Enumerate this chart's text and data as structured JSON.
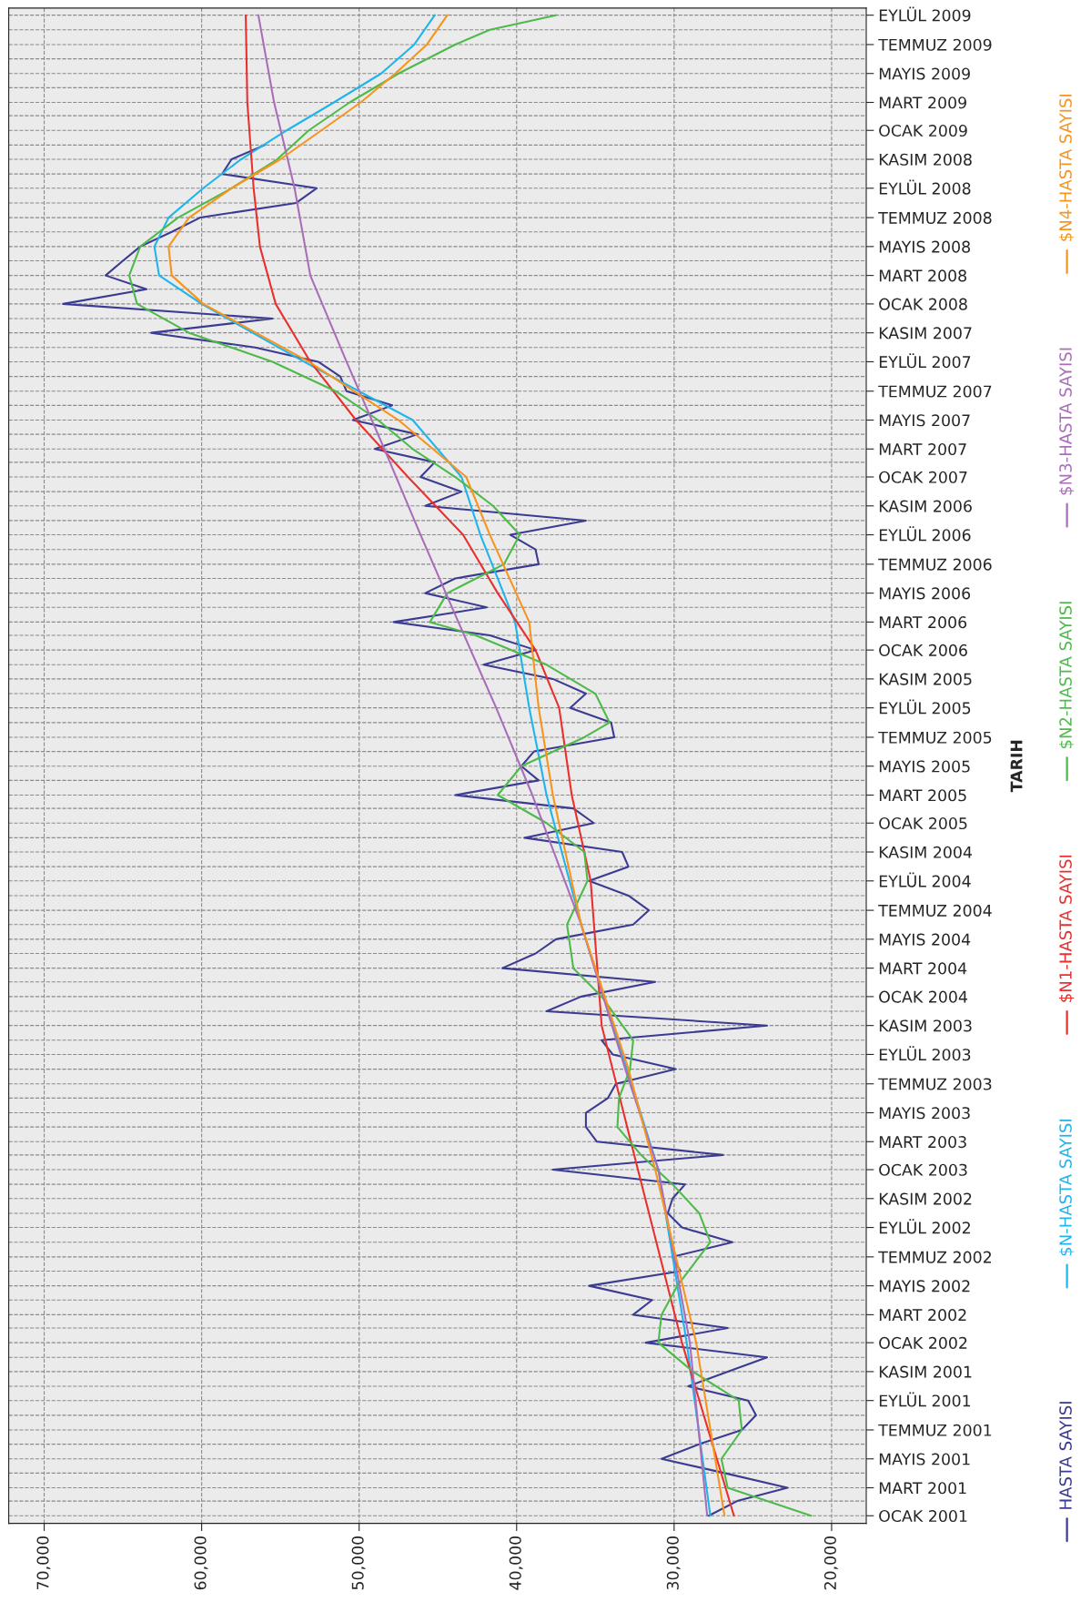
{
  "chart_data": {
    "type": "line",
    "orientation": "horizontal",
    "ylabel": "TARIH",
    "xlim": [
      72250,
      17800
    ],
    "xticks": [
      {
        "value": 70000,
        "label": "70,000"
      },
      {
        "value": 60000,
        "label": "60,000"
      },
      {
        "value": 50000,
        "label": "50,000"
      },
      {
        "value": 40000,
        "label": "40,000"
      },
      {
        "value": 30000,
        "label": "30,000"
      },
      {
        "value": 20000,
        "label": "20,000"
      }
    ],
    "ylim": [
      "2000-12-16",
      "2009-09-16"
    ],
    "yticks": [
      {
        "value": "2001-01",
        "label": "OCAK 2001"
      },
      {
        "value": "2001-02",
        "label": null
      },
      {
        "value": "2001-03",
        "label": "MART 2001"
      },
      {
        "value": "2001-04",
        "label": null
      },
      {
        "value": "2001-05",
        "label": "MAYIS 2001"
      },
      {
        "value": "2001-06",
        "label": null
      },
      {
        "value": "2001-07",
        "label": "TEMMUZ 2001"
      },
      {
        "value": "2001-08",
        "label": null
      },
      {
        "value": "2001-09",
        "label": "EYLÜL 2001"
      },
      {
        "value": "2001-10",
        "label": null
      },
      {
        "value": "2001-11",
        "label": "KASIM 2001"
      },
      {
        "value": "2001-12",
        "label": null
      },
      {
        "value": "2002-01",
        "label": "OCAK 2002"
      },
      {
        "value": "2002-02",
        "label": null
      },
      {
        "value": "2002-03",
        "label": "MART 2002"
      },
      {
        "value": "2002-04",
        "label": null
      },
      {
        "value": "2002-05",
        "label": "MAYIS 2002"
      },
      {
        "value": "2002-06",
        "label": null
      },
      {
        "value": "2002-07",
        "label": "TEMMUZ 2002"
      },
      {
        "value": "2002-08",
        "label": null
      },
      {
        "value": "2002-09",
        "label": "EYLÜL 2002"
      },
      {
        "value": "2002-10",
        "label": null
      },
      {
        "value": "2002-11",
        "label": "KASIM 2002"
      },
      {
        "value": "2002-12",
        "label": null
      },
      {
        "value": "2003-01",
        "label": "OCAK 2003"
      },
      {
        "value": "2003-02",
        "label": null
      },
      {
        "value": "2003-03",
        "label": "MART 2003"
      },
      {
        "value": "2003-04",
        "label": null
      },
      {
        "value": "2003-05",
        "label": "MAYIS 2003"
      },
      {
        "value": "2003-06",
        "label": null
      },
      {
        "value": "2003-07",
        "label": "TEMMUZ 2003"
      },
      {
        "value": "2003-08",
        "label": null
      },
      {
        "value": "2003-09",
        "label": "EYLÜL 2003"
      },
      {
        "value": "2003-10",
        "label": null
      },
      {
        "value": "2003-11",
        "label": "KASIM 2003"
      },
      {
        "value": "2003-12",
        "label": null
      },
      {
        "value": "2004-01",
        "label": "OCAK 2004"
      },
      {
        "value": "2004-02",
        "label": null
      },
      {
        "value": "2004-03",
        "label": "MART 2004"
      },
      {
        "value": "2004-04",
        "label": null
      },
      {
        "value": "2004-05",
        "label": "MAYIS 2004"
      },
      {
        "value": "2004-06",
        "label": null
      },
      {
        "value": "2004-07",
        "label": "TEMMUZ 2004"
      },
      {
        "value": "2004-08",
        "label": null
      },
      {
        "value": "2004-09",
        "label": "EYLÜL 2004"
      },
      {
        "value": "2004-10",
        "label": null
      },
      {
        "value": "2004-11",
        "label": "KASIM 2004"
      },
      {
        "value": "2004-12",
        "label": null
      },
      {
        "value": "2005-01",
        "label": "OCAK 2005"
      },
      {
        "value": "2005-02",
        "label": null
      },
      {
        "value": "2005-03",
        "label": "MART 2005"
      },
      {
        "value": "2005-04",
        "label": null
      },
      {
        "value": "2005-05",
        "label": "MAYIS 2005"
      },
      {
        "value": "2005-06",
        "label": null
      },
      {
        "value": "2005-07",
        "label": "TEMMUZ 2005"
      },
      {
        "value": "2005-08",
        "label": null
      },
      {
        "value": "2005-09",
        "label": "EYLÜL 2005"
      },
      {
        "value": "2005-10",
        "label": null
      },
      {
        "value": "2005-11",
        "label": "KASIM 2005"
      },
      {
        "value": "2005-12",
        "label": null
      },
      {
        "value": "2006-01",
        "label": "OCAK 2006"
      },
      {
        "value": "2006-02",
        "label": null
      },
      {
        "value": "2006-03",
        "label": "MART 2006"
      },
      {
        "value": "2006-04",
        "label": null
      },
      {
        "value": "2006-05",
        "label": "MAYIS 2006"
      },
      {
        "value": "2006-06",
        "label": null
      },
      {
        "value": "2006-07",
        "label": "TEMMUZ 2006"
      },
      {
        "value": "2006-08",
        "label": null
      },
      {
        "value": "2006-09",
        "label": "EYLÜL 2006"
      },
      {
        "value": "2006-10",
        "label": null
      },
      {
        "value": "2006-11",
        "label": "KASIM 2006"
      },
      {
        "value": "2006-12",
        "label": null
      },
      {
        "value": "2007-01",
        "label": "OCAK 2007"
      },
      {
        "value": "2007-02",
        "label": null
      },
      {
        "value": "2007-03",
        "label": "MART 2007"
      },
      {
        "value": "2007-04",
        "label": null
      },
      {
        "value": "2007-05",
        "label": "MAYIS 2007"
      },
      {
        "value": "2007-06",
        "label": null
      },
      {
        "value": "2007-07",
        "label": "TEMMUZ 2007"
      },
      {
        "value": "2007-08",
        "label": null
      },
      {
        "value": "2007-09",
        "label": "EYLÜL 2007"
      },
      {
        "value": "2007-10",
        "label": null
      },
      {
        "value": "2007-11",
        "label": "KASIM 2007"
      },
      {
        "value": "2007-12",
        "label": null
      },
      {
        "value": "2008-01",
        "label": "OCAK 2008"
      },
      {
        "value": "2008-02",
        "label": null
      },
      {
        "value": "2008-03",
        "label": "MART 2008"
      },
      {
        "value": "2008-04",
        "label": null
      },
      {
        "value": "2008-05",
        "label": "MAYIS 2008"
      },
      {
        "value": "2008-06",
        "label": null
      },
      {
        "value": "2008-07",
        "label": "TEMMUZ 2008"
      },
      {
        "value": "2008-08",
        "label": null
      },
      {
        "value": "2008-09",
        "label": "EYLÜL 2008"
      },
      {
        "value": "2008-10",
        "label": null
      },
      {
        "value": "2008-11",
        "label": "KASIM 2008"
      },
      {
        "value": "2008-12",
        "label": null
      },
      {
        "value": "2009-01",
        "label": "OCAK 2009"
      },
      {
        "value": "2009-02",
        "label": null
      },
      {
        "value": "2009-03",
        "label": "MART 2009"
      },
      {
        "value": "2009-04",
        "label": null
      },
      {
        "value": "2009-05",
        "label": "MAYIS 2009"
      },
      {
        "value": "2009-06",
        "label": null
      },
      {
        "value": "2009-07",
        "label": "TEMMUZ 2009"
      },
      {
        "value": "2009-08",
        "label": null
      },
      {
        "value": "2009-09",
        "label": "EYLÜL 2009"
      }
    ],
    "grid": true,
    "legend": "right",
    "series": [
      {
        "name": "HASTA SAYISI",
        "color": "#3b3b92",
        "x": [
          "2001-01",
          "2001-02",
          "2001-03",
          "2001-04",
          "2001-05",
          "2001-06",
          "2001-07",
          "2001-08",
          "2001-09",
          "2001-10",
          "2001-11",
          "2001-12",
          "2002-01",
          "2002-02",
          "2002-03",
          "2002-04",
          "2002-05",
          "2002-06",
          "2002-07",
          "2002-08",
          "2002-09",
          "2002-10",
          "2002-11",
          "2002-12",
          "2003-01",
          "2003-02",
          "2003-03",
          "2003-04",
          "2003-05",
          "2003-06",
          "2003-07",
          "2003-08",
          "2003-09",
          "2003-10",
          "2003-11",
          "2003-12",
          "2004-01",
          "2004-02",
          "2004-03",
          "2004-04",
          "2004-05",
          "2004-06",
          "2004-07",
          "2004-08",
          "2004-09",
          "2004-10",
          "2004-11",
          "2004-12",
          "2005-01",
          "2005-02",
          "2005-03",
          "2005-04",
          "2005-05",
          "2005-06",
          "2005-07",
          "2005-08",
          "2005-09",
          "2005-10",
          "2005-11",
          "2005-12",
          "2006-01",
          "2006-02",
          "2006-03",
          "2006-04",
          "2006-05",
          "2006-06",
          "2006-07",
          "2006-08",
          "2006-09",
          "2006-10",
          "2006-11",
          "2006-12",
          "2007-01",
          "2007-02",
          "2007-03",
          "2007-04",
          "2007-05",
          "2007-06",
          "2007-07",
          "2007-08",
          "2007-09",
          "2007-10",
          "2007-11",
          "2007-12",
          "2008-01",
          "2008-02",
          "2008-03",
          "2008-04",
          "2008-05",
          "2008-06",
          "2008-07",
          "2008-08",
          "2008-09",
          "2008-10",
          "2008-11",
          "2008-12"
        ],
        "values": [
          27800,
          26000,
          22800,
          26800,
          30800,
          28400,
          25700,
          24800,
          25300,
          29100,
          26600,
          24100,
          31800,
          26600,
          32600,
          31400,
          35400,
          29600,
          30100,
          26300,
          29500,
          30400,
          30100,
          29300,
          37700,
          26900,
          34900,
          35600,
          35600,
          34200,
          33700,
          29900,
          33900,
          34600,
          24100,
          38100,
          35900,
          31200,
          40900,
          38800,
          37500,
          32600,
          31600,
          32900,
          35400,
          32900,
          33300,
          39500,
          35100,
          36400,
          43900,
          38600,
          39700,
          38900,
          33800,
          34000,
          36600,
          35600,
          37700,
          42100,
          38800,
          41700,
          47800,
          41900,
          45800,
          43900,
          38600,
          38800,
          40400,
          35600,
          45800,
          43500,
          46100,
          45200,
          49000,
          46300,
          50400,
          47900,
          50800,
          51200,
          52600,
          56600,
          63200,
          55500,
          68800,
          63500,
          66100,
          65000,
          63900,
          61900,
          60100,
          54000,
          52700,
          58700,
          58100,
          56000
        ]
      },
      {
        "name": "$N-HASTA SAYISI",
        "color": "#1fb5ec",
        "x": [
          "2001-01",
          "2002-01",
          "2003-01",
          "2003-08",
          "2004-06",
          "2005-03",
          "2005-09",
          "2006-03",
          "2006-09",
          "2007-01",
          "2007-05",
          "2007-09",
          "2008-01",
          "2008-03",
          "2008-05",
          "2008-07",
          "2008-09",
          "2008-11",
          "2009-01",
          "2009-03",
          "2009-05",
          "2009-07",
          "2009-09"
        ],
        "values": [
          27700,
          29200,
          31000,
          33000,
          35900,
          38100,
          39200,
          40100,
          42300,
          43500,
          46600,
          53500,
          60000,
          62700,
          63000,
          62100,
          59900,
          57500,
          54600,
          51600,
          48600,
          46500,
          45200
        ]
      },
      {
        "name": "$N1-HASTA SAYISI",
        "color": "#e8302e",
        "x": [
          "2001-01",
          "2002-01",
          "2003-01",
          "2003-11",
          "2004-09",
          "2005-03",
          "2005-09",
          "2006-01",
          "2006-05",
          "2006-09",
          "2007-01",
          "2007-05",
          "2007-09",
          "2008-01",
          "2008-05",
          "2008-09",
          "2009-03",
          "2009-09"
        ],
        "values": [
          26200,
          29500,
          32300,
          34600,
          35300,
          36500,
          37300,
          38800,
          41200,
          43400,
          46900,
          50200,
          53100,
          55300,
          56300,
          56700,
          57100,
          57200
        ]
      },
      {
        "name": "$N2-HASTA SAYISI",
        "color": "#4dba4a",
        "x": [
          "2001-01",
          "2001-03",
          "2001-05",
          "2001-07",
          "2001-09",
          "2001-11",
          "2002-01",
          "2002-03",
          "2002-05",
          "2002-08",
          "2002-10",
          "2002-12",
          "2003-02",
          "2003-04",
          "2003-06",
          "2003-08",
          "2003-10",
          "2004-01",
          "2004-03",
          "2004-06",
          "2004-09",
          "2004-11",
          "2005-01",
          "2005-03",
          "2005-05",
          "2005-07",
          "2005-08",
          "2005-10",
          "2005-12",
          "2006-02",
          "2006-03",
          "2006-05",
          "2006-07",
          "2006-09",
          "2006-11",
          "2007-01",
          "2007-03",
          "2007-05",
          "2007-07",
          "2007-09",
          "2007-11",
          "2008-01",
          "2008-03",
          "2008-05",
          "2008-07",
          "2008-09",
          "2008-11",
          "2009-01",
          "2009-03",
          "2009-05",
          "2009-07",
          "2009-08",
          "2009-09"
        ],
        "values": [
          21300,
          26600,
          27000,
          25700,
          25900,
          28800,
          31000,
          30800,
          29800,
          27700,
          28400,
          30100,
          32100,
          33600,
          33500,
          32800,
          32600,
          34600,
          36400,
          36800,
          35500,
          35700,
          38100,
          41200,
          39700,
          35700,
          34100,
          35000,
          38100,
          42600,
          45500,
          44400,
          40800,
          39800,
          41500,
          43900,
          46600,
          48800,
          51500,
          55500,
          60800,
          64100,
          64600,
          63900,
          61500,
          58100,
          55200,
          53200,
          50600,
          47500,
          43900,
          41700,
          37500
        ]
      },
      {
        "name": "$N3-HASTA SAYISI",
        "color": "#a96db9",
        "x": [
          "2001-01",
          "2002-01",
          "2003-01",
          "2003-08",
          "2004-06",
          "2005-03",
          "2005-09",
          "2006-03",
          "2006-09",
          "2007-03",
          "2007-09",
          "2008-03",
          "2008-09",
          "2009-03",
          "2009-09"
        ],
        "values": [
          27900,
          29000,
          31000,
          33100,
          35900,
          39000,
          41300,
          43700,
          46100,
          48400,
          50800,
          53100,
          54100,
          55400,
          56400
        ]
      },
      {
        "name": "$N4-HASTA SAYISI",
        "color": "#f7941e",
        "x": [
          "2001-01",
          "2002-01",
          "2003-01",
          "2003-08",
          "2004-06",
          "2005-03",
          "2005-09",
          "2006-03",
          "2006-09",
          "2007-01",
          "2007-05",
          "2007-09",
          "2008-01",
          "2008-03",
          "2008-05",
          "2008-07",
          "2008-09",
          "2008-11",
          "2009-01",
          "2009-03",
          "2009-05",
          "2009-07",
          "2009-09"
        ],
        "values": [
          26800,
          28600,
          31200,
          32900,
          35900,
          37700,
          38600,
          39200,
          41700,
          43200,
          47500,
          53200,
          59900,
          61900,
          62100,
          60800,
          58100,
          55000,
          52400,
          49900,
          47700,
          45700,
          44400
        ]
      }
    ]
  }
}
